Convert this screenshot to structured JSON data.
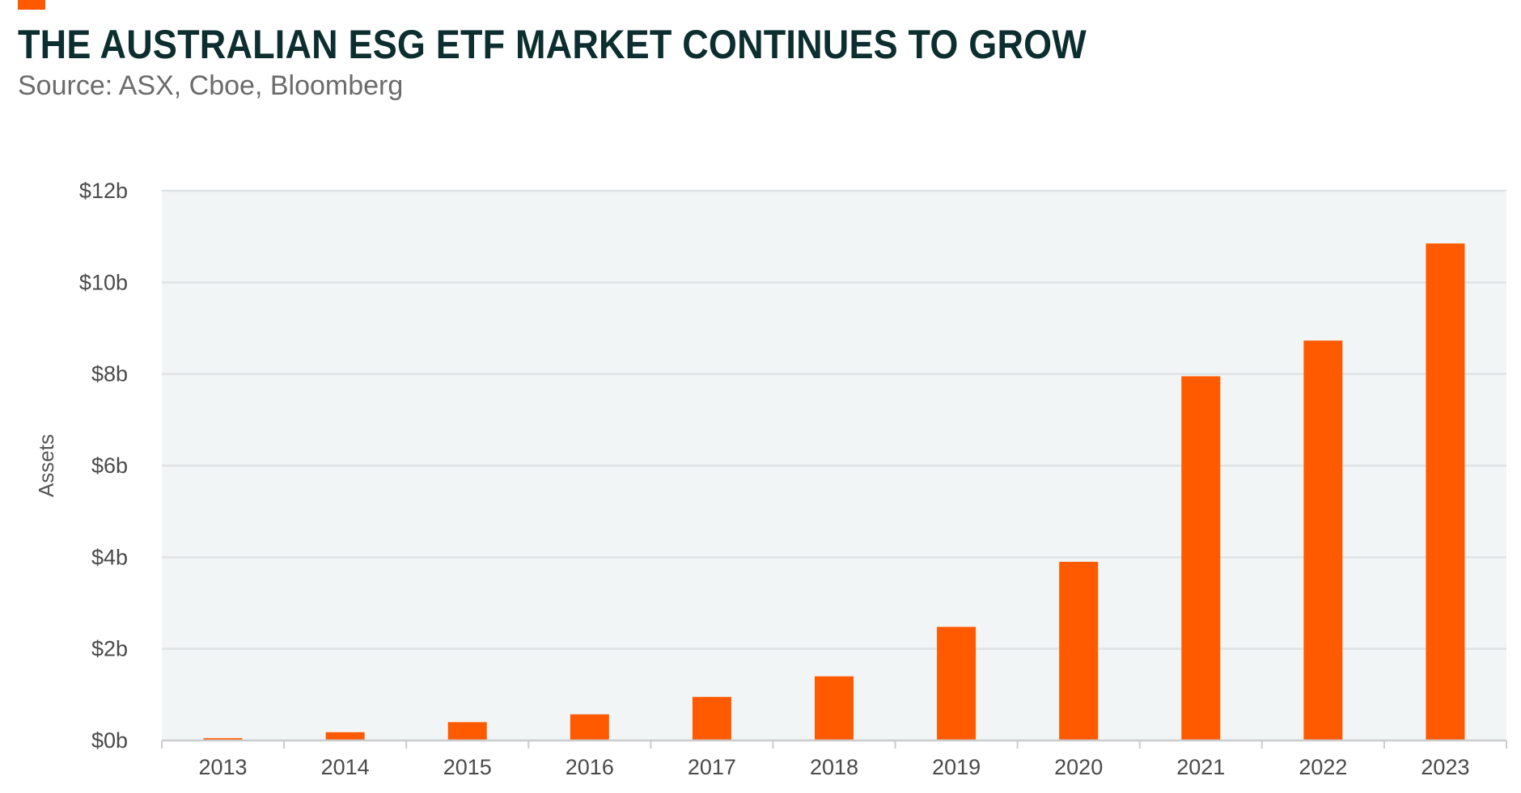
{
  "colors": {
    "accent": "#ff5a00",
    "title": "#0c2e2e",
    "subtitle": "#6b6b6b",
    "plot_background": "#f2f5f6",
    "gridline": "#dfe3e5",
    "axis": "#c9cdd0",
    "tick_text": "#4a4a4a"
  },
  "chart_data": {
    "type": "bar",
    "title": "THE AUSTRALIAN ESG ETF MARKET CONTINUES TO GROW",
    "subtitle": "Source: ASX, Cboe, Bloomberg",
    "xlabel": "",
    "ylabel": "Assets",
    "categories": [
      "2013",
      "2014",
      "2015",
      "2016",
      "2017",
      "2018",
      "2019",
      "2020",
      "2021",
      "2022",
      "2023"
    ],
    "values": [
      0.05,
      0.18,
      0.4,
      0.57,
      0.95,
      1.4,
      2.48,
      3.9,
      7.95,
      8.73,
      10.85
    ],
    "value_unit": "billions AUD",
    "ylim": [
      0,
      12
    ],
    "yticks": [
      0,
      2,
      4,
      6,
      8,
      10,
      12
    ],
    "ytick_labels": [
      "$0b",
      "$2b",
      "$4b",
      "$6b",
      "$8b",
      "$10b",
      "$12b"
    ],
    "grid": true,
    "legend": "none",
    "bar_color": "#ff5a00"
  }
}
